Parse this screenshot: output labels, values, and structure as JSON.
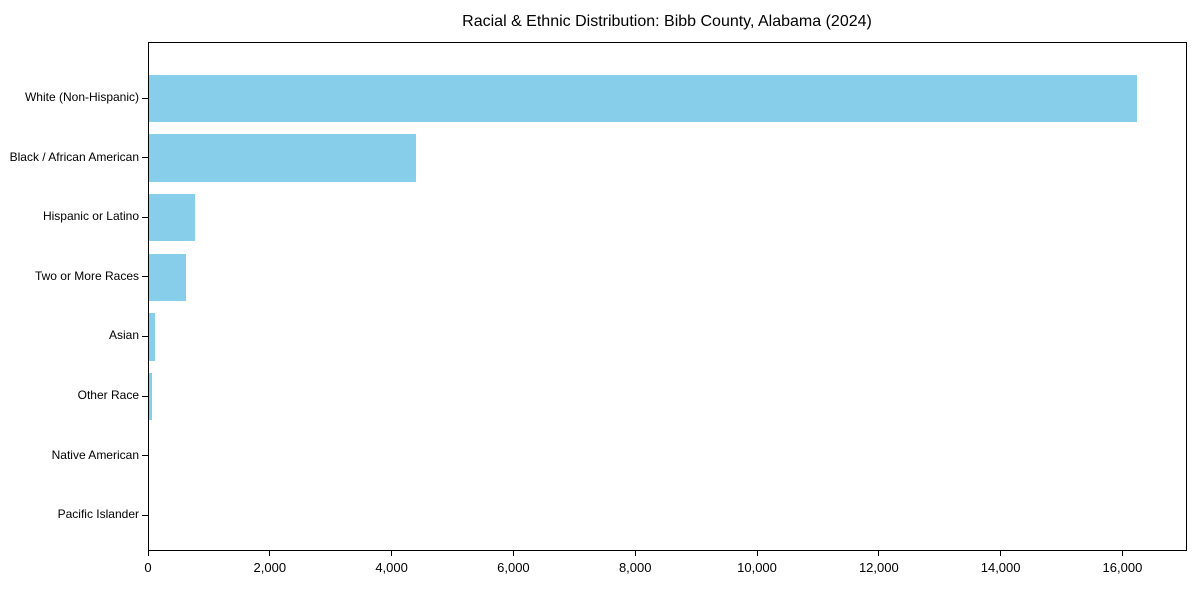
{
  "chart_data": {
    "type": "bar",
    "orientation": "horizontal",
    "title": "Racial & Ethnic Distribution: Bibb County, Alabama (2024)",
    "xlabel": "",
    "ylabel": "",
    "categories": [
      "White (Non-Hispanic)",
      "Black / African American",
      "Hispanic or Latino",
      "Two or More Races",
      "Asian",
      "Other Race",
      "Native American",
      "Pacific Islander"
    ],
    "values": [
      16230,
      4390,
      755,
      610,
      100,
      50,
      0,
      0
    ],
    "bar_color": "#87CEEB",
    "xlim": [
      0,
      17060
    ],
    "x_ticks": [
      0,
      2000,
      4000,
      6000,
      8000,
      10000,
      12000,
      14000,
      16000
    ],
    "x_tick_labels": [
      "0",
      "2,000",
      "4,000",
      "6,000",
      "8,000",
      "10,000",
      "12,000",
      "14,000",
      "16,000"
    ],
    "grid": false,
    "legend": null,
    "frame": "full-box",
    "background_color": "#ffffff",
    "text_color": "#000000"
  }
}
